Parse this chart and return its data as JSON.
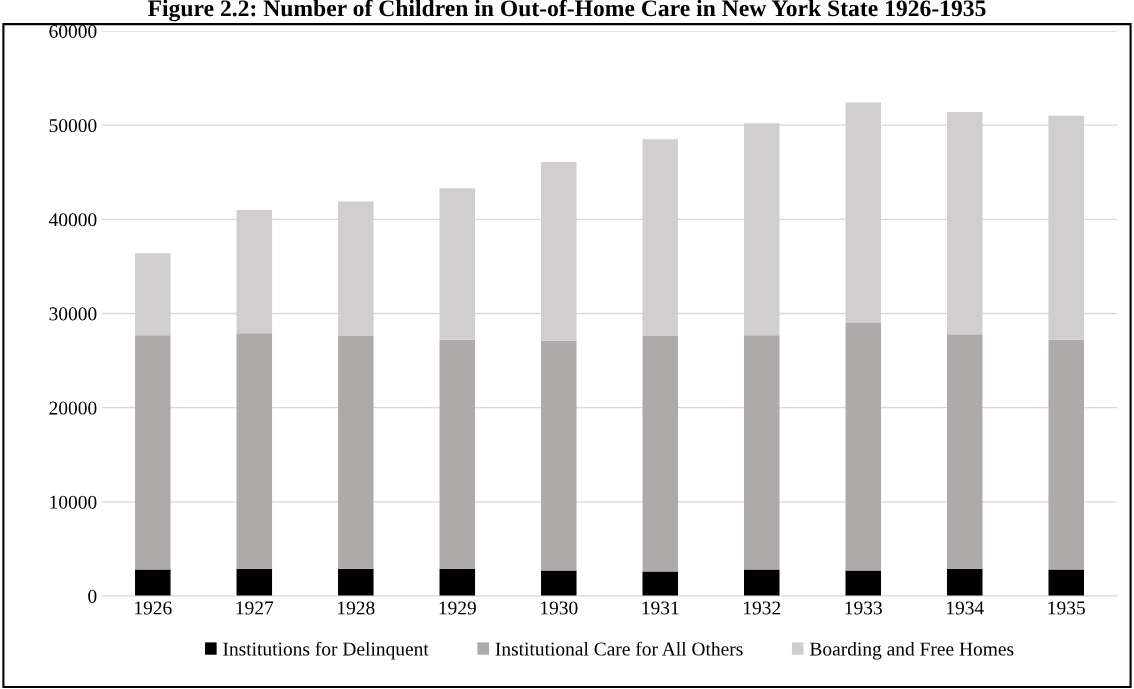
{
  "chart_data": {
    "type": "bar",
    "stacked": true,
    "title": "Figure 2.2: Number of Children in Out-of-Home Care in New York State 1926-1935",
    "categories": [
      "1926",
      "1927",
      "1928",
      "1929",
      "1930",
      "1931",
      "1932",
      "1933",
      "1934",
      "1935"
    ],
    "series": [
      {
        "name": "Institutions for Delinquent",
        "color": "#000000",
        "values": [
          2800,
          2900,
          2900,
          2900,
          2700,
          2600,
          2800,
          2700,
          2900,
          2800
        ]
      },
      {
        "name": "Institutional Care for All Others",
        "color": "#aeaaaa",
        "values": [
          24900,
          25000,
          24700,
          24300,
          24400,
          25000,
          24900,
          26300,
          24900,
          24400
        ]
      },
      {
        "name": "Boarding and Free Homes",
        "color": "#d0cece",
        "values": [
          8700,
          13100,
          14300,
          16100,
          19000,
          20900,
          22500,
          23400,
          23600,
          23800
        ]
      }
    ],
    "ylim": [
      0,
      60000
    ],
    "yticks": [
      0,
      10000,
      20000,
      30000,
      40000,
      50000,
      60000
    ],
    "grid": "y",
    "legend": "bottom"
  }
}
